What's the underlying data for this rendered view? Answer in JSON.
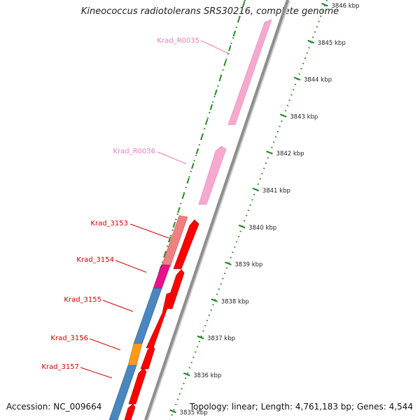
{
  "header": {
    "title": "Kineococcus radiotolerans SRS30216, complete genome"
  },
  "footer": {
    "accession": "Accession: NC_009664",
    "summary": "Topology: linear; Length: 4,761,183 bp; Genes: 4,544"
  },
  "colors": {
    "strand": "#909090",
    "tick": "#2a8a2a",
    "rna_gene": "#f7a8cf",
    "rna_label": "#f07ab8",
    "protein_gene": "#ff0000",
    "protein_label": "#d40000",
    "cog_pink": "#f08080",
    "cog_magenta": "#e8108c",
    "cog_blue": "#4a87c0",
    "cog_orange": "#ff9a1a"
  },
  "scale": {
    "ticks": [
      "3846 kbp",
      "3845 kbp",
      "3844 kbp",
      "3843 kbp",
      "3842 kbp",
      "3841 kbp",
      "3840 kbp",
      "3839 kbp",
      "3838 kbp",
      "3837 kbp",
      "3836 kbp",
      "3835 kbp"
    ]
  },
  "genes": [
    {
      "label": "Krad_R0035",
      "type": "rna"
    },
    {
      "label": "Krad_R0036",
      "type": "rna"
    },
    {
      "label": "Krad_3153",
      "type": "protein",
      "cog": "pink"
    },
    {
      "label": "Krad_3154",
      "type": "protein",
      "cog": "magenta"
    },
    {
      "label": "Krad_3155",
      "type": "protein",
      "cog": "blue"
    },
    {
      "label": "Krad_3156",
      "type": "protein",
      "cog": "orange"
    },
    {
      "label": "Krad_3157",
      "type": "protein",
      "cog": "blue"
    }
  ]
}
